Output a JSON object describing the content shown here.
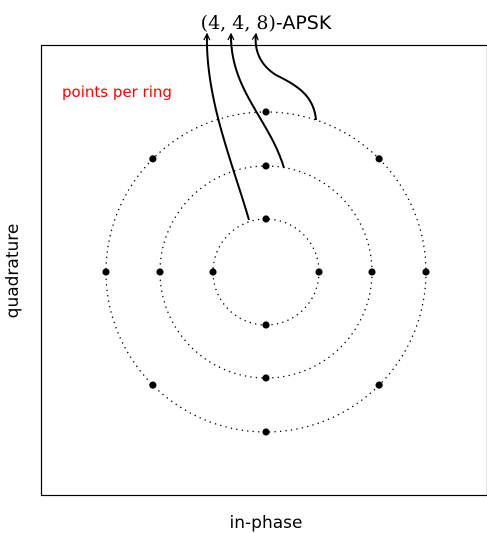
{
  "title": {
    "math": "(4, 4, 8)",
    "suffix": "-APSK"
  },
  "annotation": "points per ring",
  "xlabel": "in-phase",
  "ylabel": "quadrature",
  "colors": {
    "annotation": "#ff0000",
    "ink": "#000000"
  },
  "rings": [
    {
      "points": 4,
      "phase_deg": 90
    },
    {
      "points": 4,
      "phase_deg": 90
    },
    {
      "points": 8,
      "phase_deg": 0
    }
  ]
}
